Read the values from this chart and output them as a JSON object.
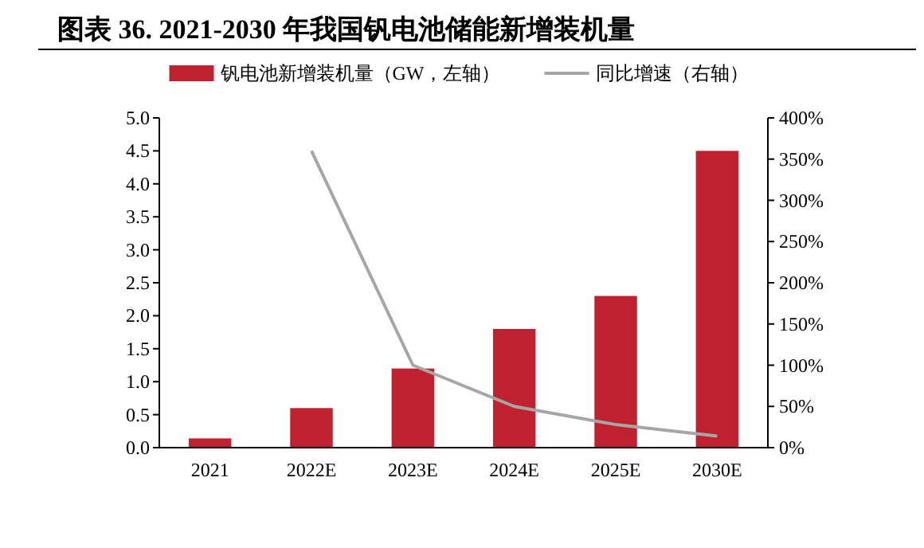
{
  "chart_data": {
    "type": "bar",
    "title": "图表 36. 2021-2030 年我国钒电池储能新增装机量",
    "categories": [
      "2021",
      "2022E",
      "2023E",
      "2024E",
      "2025E",
      "2030E"
    ],
    "series": [
      {
        "name": "钒电池新增装机量（GW，左轴）",
        "color": "#c0212f",
        "values": [
          0.14,
          0.6,
          1.2,
          1.8,
          2.3,
          4.5
        ]
      },
      {
        "name": "同比增速（右轴）",
        "type": "line",
        "axis": "y2",
        "color": "#a6a6a6",
        "values": [
          null,
          360,
          100,
          50,
          28,
          14
        ]
      }
    ],
    "ylim": [
      0,
      5
    ],
    "yticks": [
      {
        "value": 0,
        "label": "0.0"
      },
      {
        "value": 0.5,
        "label": "0.5"
      },
      {
        "value": 1,
        "label": "1.0"
      },
      {
        "value": 1.5,
        "label": "1.5"
      },
      {
        "value": 2,
        "label": "2.0"
      },
      {
        "value": 2.5,
        "label": "2.5"
      },
      {
        "value": 3,
        "label": "3.0"
      },
      {
        "value": 3.5,
        "label": "3.5"
      },
      {
        "value": 4,
        "label": "4.0"
      },
      {
        "value": 4.5,
        "label": "4.5"
      },
      {
        "value": 5,
        "label": "5.0"
      }
    ],
    "y2lim": [
      0,
      400
    ],
    "y2ticks": [
      {
        "value": 0,
        "label": "0%"
      },
      {
        "value": 50,
        "label": "50%"
      },
      {
        "value": 100,
        "label": "100%"
      },
      {
        "value": 150,
        "label": "150%"
      },
      {
        "value": 200,
        "label": "200%"
      },
      {
        "value": 250,
        "label": "250%"
      },
      {
        "value": 300,
        "label": "300%"
      },
      {
        "value": 350,
        "label": "350%"
      },
      {
        "value": 400,
        "label": "400%"
      }
    ],
    "legend": "top",
    "grid": false
  }
}
